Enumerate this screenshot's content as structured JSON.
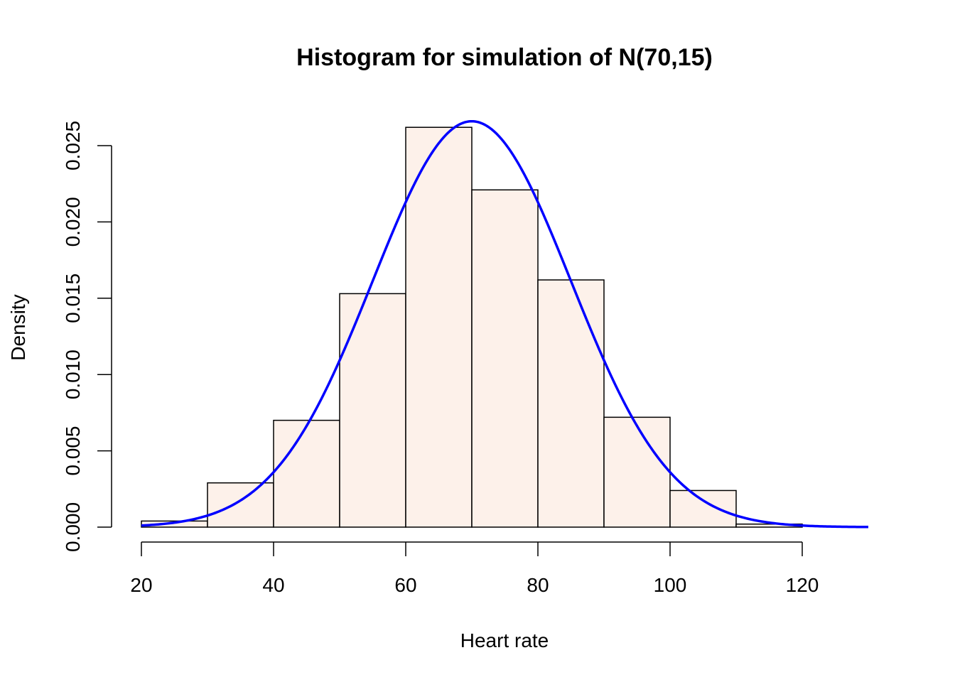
{
  "chart_data": {
    "type": "bar",
    "title": "Histogram for simulation of N(70,15)",
    "xlabel": "Heart rate",
    "ylabel": "Density",
    "bins": [
      {
        "from": 20,
        "to": 30,
        "density": 0.0004
      },
      {
        "from": 30,
        "to": 40,
        "density": 0.0029
      },
      {
        "from": 40,
        "to": 50,
        "density": 0.007
      },
      {
        "from": 50,
        "to": 60,
        "density": 0.0153
      },
      {
        "from": 60,
        "to": 70,
        "density": 0.0262
      },
      {
        "from": 70,
        "to": 80,
        "density": 0.0221
      },
      {
        "from": 80,
        "to": 90,
        "density": 0.0162
      },
      {
        "from": 90,
        "to": 100,
        "density": 0.0072
      },
      {
        "from": 100,
        "to": 110,
        "density": 0.0024
      },
      {
        "from": 110,
        "to": 120,
        "density": 0.0002
      }
    ],
    "curve": {
      "type": "normal-density",
      "mean": 70,
      "sd": 15,
      "x_range": [
        20,
        130
      ]
    },
    "xlim": [
      20,
      130
    ],
    "ylim": [
      0,
      0.027
    ],
    "xticks": [
      "20",
      "40",
      "60",
      "80",
      "100",
      "120"
    ],
    "xtick_values": [
      20,
      40,
      60,
      80,
      100,
      120
    ],
    "yticks": [
      "0.000",
      "0.005",
      "0.010",
      "0.015",
      "0.020",
      "0.025"
    ],
    "ytick_values": [
      0,
      0.005,
      0.01,
      0.015,
      0.02,
      0.025
    ],
    "grid": false,
    "colors": {
      "bar_fill": "#fdf1ea",
      "bar_stroke": "#000000",
      "curve": "#0000ff"
    }
  }
}
